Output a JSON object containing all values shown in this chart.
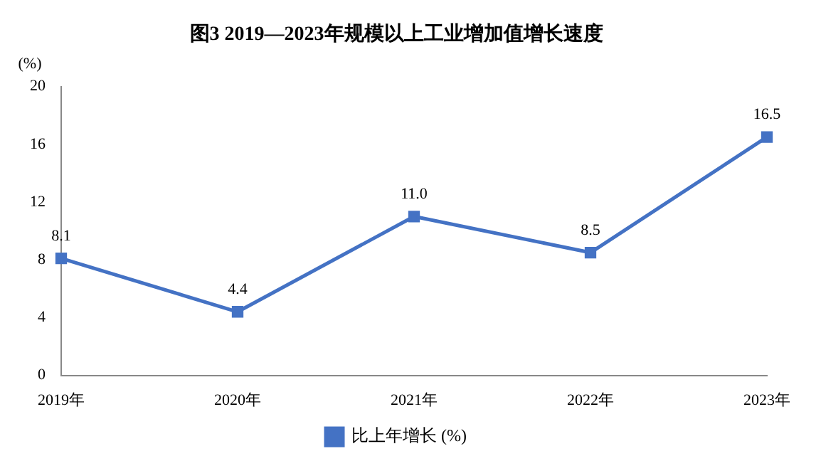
{
  "chart_data": {
    "type": "line",
    "title": "图3 2019—2023年规模以上工业增加值增长速度",
    "ylabel": "(%)",
    "categories": [
      "2019年",
      "2020年",
      "2021年",
      "2022年",
      "2023年"
    ],
    "series": [
      {
        "name": "比上年增长 (%)",
        "color": "#4472c4",
        "values": [
          8.1,
          4.4,
          11.0,
          8.5,
          16.5
        ],
        "value_labels": [
          "8.1",
          "4.4",
          "11.0",
          "8.5",
          "16.5"
        ]
      }
    ],
    "ylim": [
      0,
      20
    ],
    "yticks": [
      0,
      4,
      8,
      12,
      16,
      20
    ],
    "grid": false,
    "legend": "bottom",
    "marker": "square",
    "line_style": "solid"
  }
}
